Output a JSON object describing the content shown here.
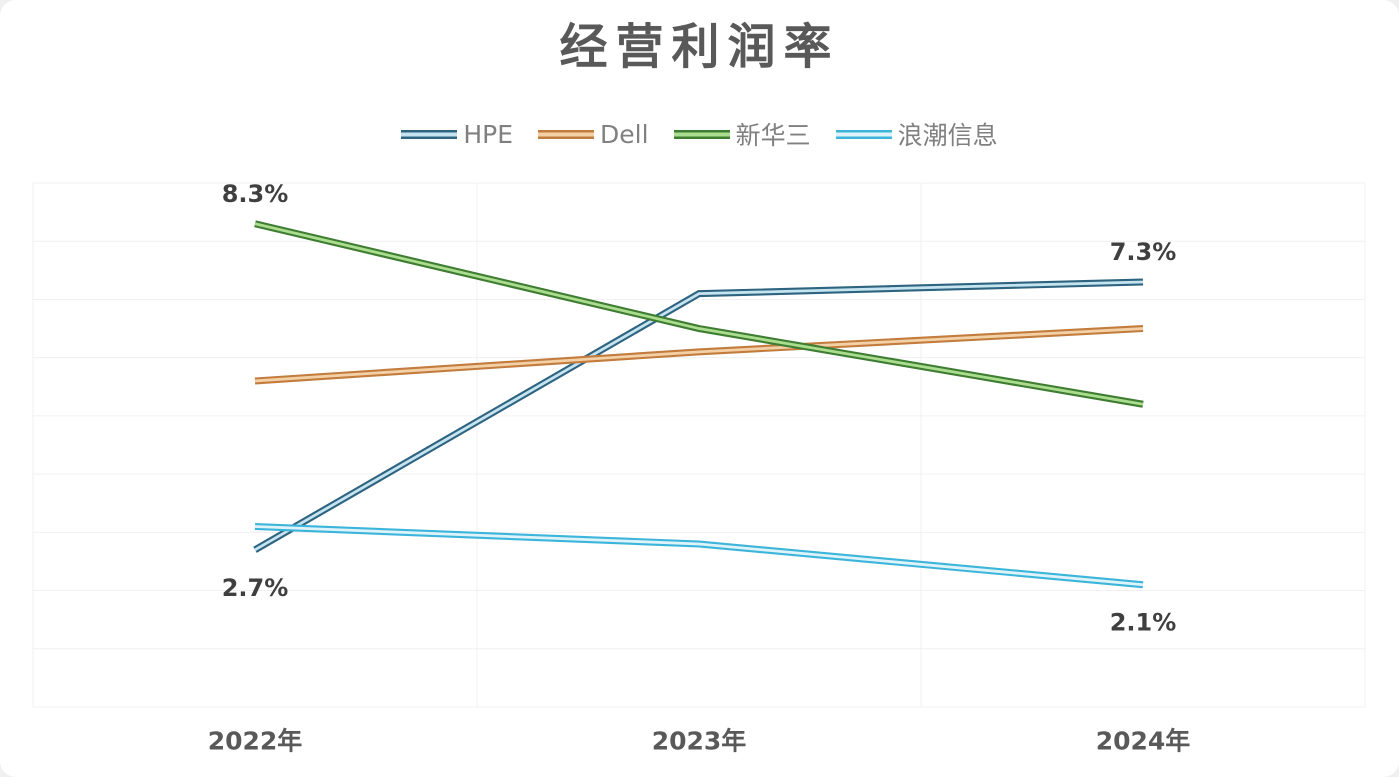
{
  "chart_data": {
    "type": "line",
    "title": "经营利润率",
    "categories": [
      "2022年",
      "2023年",
      "2024年"
    ],
    "series": [
      {
        "name": "HPE",
        "values": [
          2.7,
          7.1,
          7.3
        ],
        "color": "#2e6480",
        "core_color": "#c5e4f0"
      },
      {
        "name": "Dell",
        "values": [
          5.6,
          6.1,
          6.5
        ],
        "color": "#c27c3e",
        "core_color": "#f3d0a5"
      },
      {
        "name": "新华三",
        "values": [
          8.3,
          6.5,
          5.2
        ],
        "color": "#3f7d33",
        "core_color": "#aadd8e"
      },
      {
        "name": "浪潮信息",
        "values": [
          3.1,
          2.8,
          2.1
        ],
        "color": "#3db5da",
        "core_color": "#def4fa"
      }
    ],
    "point_labels": [
      {
        "series": "新华三",
        "point": 0,
        "text": "8.3%",
        "placement": "above"
      },
      {
        "series": "HPE",
        "point": 0,
        "text": "2.7%",
        "placement": "below"
      },
      {
        "series": "HPE",
        "point": 2,
        "text": "7.3%",
        "placement": "above"
      },
      {
        "series": "浪潮信息",
        "point": 2,
        "text": "2.1%",
        "placement": "below"
      }
    ],
    "xlabel": "",
    "ylabel": "",
    "ylim": [
      0,
      9
    ],
    "y_gridline_step": 1,
    "grid": true,
    "legend_position": "top",
    "y_tick_labels_shown": false
  },
  "styles": {
    "title_color": "#595959",
    "legend_text_color": "#808080",
    "data_label_color": "#3f3f3f",
    "axis_label_color": "#595959",
    "gridline_color": "#f0f0f0",
    "background_color": "#ffffff"
  }
}
